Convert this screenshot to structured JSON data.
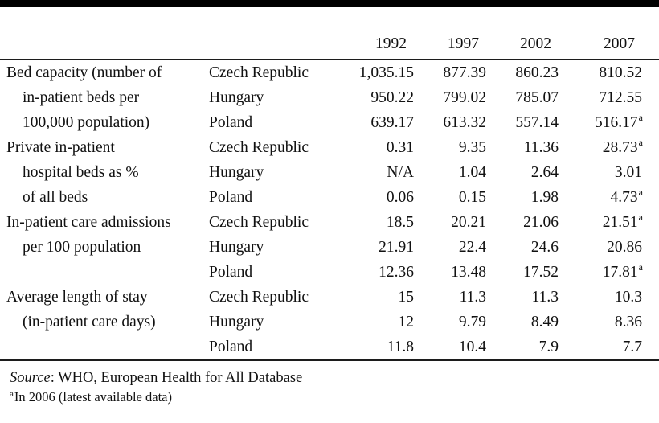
{
  "table": {
    "years": [
      "1992",
      "1997",
      "2002",
      "2007"
    ],
    "rows": [
      {
        "label": "Bed capacity (number of",
        "country": "Czech Republic",
        "cells": [
          {
            "v": "1,035.15"
          },
          {
            "v": "877.39"
          },
          {
            "v": "860.23"
          },
          {
            "v": "810.52"
          }
        ]
      },
      {
        "label": "in-patient beds per",
        "country": "Hungary",
        "cells": [
          {
            "v": "950.22"
          },
          {
            "v": "799.02"
          },
          {
            "v": "785.07"
          },
          {
            "v": "712.55"
          }
        ]
      },
      {
        "label": "100,000 population)",
        "country": "Poland",
        "cells": [
          {
            "v": "639.17"
          },
          {
            "v": "613.32"
          },
          {
            "v": "557.14"
          },
          {
            "v": "516.17",
            "s": "a"
          }
        ]
      },
      {
        "label": "Private in-patient",
        "country": "Czech Republic",
        "cells": [
          {
            "v": "0.31"
          },
          {
            "v": "9.35"
          },
          {
            "v": "11.36"
          },
          {
            "v": "28.73",
            "s": "a"
          }
        ]
      },
      {
        "label": "hospital beds as %",
        "country": "Hungary",
        "cells": [
          {
            "v": "N/A"
          },
          {
            "v": "1.04"
          },
          {
            "v": "2.64"
          },
          {
            "v": "3.01"
          }
        ]
      },
      {
        "label": "of all beds",
        "country": "Poland",
        "cells": [
          {
            "v": "0.06"
          },
          {
            "v": "0.15"
          },
          {
            "v": "1.98"
          },
          {
            "v": "4.73",
            "s": "a"
          }
        ]
      },
      {
        "label": "In-patient care admissions",
        "country": "Czech Republic",
        "cells": [
          {
            "v": "18.5"
          },
          {
            "v": "20.21"
          },
          {
            "v": "21.06"
          },
          {
            "v": "21.51",
            "s": "a"
          }
        ]
      },
      {
        "label": "per 100 population",
        "country": "Hungary",
        "cells": [
          {
            "v": "21.91"
          },
          {
            "v": "22.4"
          },
          {
            "v": "24.6"
          },
          {
            "v": "20.86"
          }
        ]
      },
      {
        "label": "",
        "country": "Poland",
        "cells": [
          {
            "v": "12.36"
          },
          {
            "v": "13.48"
          },
          {
            "v": "17.52"
          },
          {
            "v": "17.81",
            "s": "a"
          }
        ]
      },
      {
        "label": "Average length of stay",
        "country": "Czech Republic",
        "cells": [
          {
            "v": "15"
          },
          {
            "v": "11.3"
          },
          {
            "v": "11.3"
          },
          {
            "v": "10.3"
          }
        ]
      },
      {
        "label": "(in-patient care days)",
        "country": "Hungary",
        "cells": [
          {
            "v": "12"
          },
          {
            "v": "9.79"
          },
          {
            "v": "8.49"
          },
          {
            "v": "8.36"
          }
        ]
      },
      {
        "label": "",
        "country": "Poland",
        "cells": [
          {
            "v": "11.8"
          },
          {
            "v": "10.4"
          },
          {
            "v": "7.9"
          },
          {
            "v": "7.7"
          }
        ]
      }
    ]
  },
  "footer": {
    "source_prefix": "Source",
    "source_rest": ": WHO, European Health for All Database",
    "footnote_marker": "a",
    "footnote_text": "In 2006 (latest available data)"
  }
}
